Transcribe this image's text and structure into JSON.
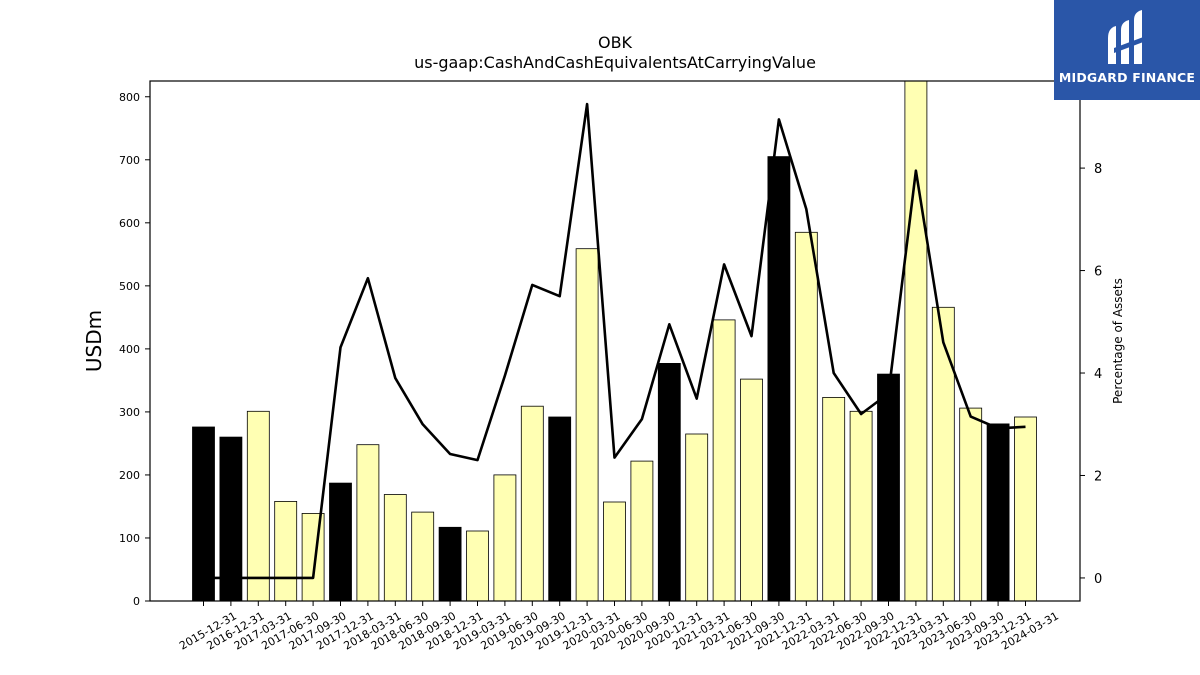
{
  "chart_data": {
    "type": "bar",
    "title": "OBK",
    "subtitle": "us-gaap:CashAndCashEquivalentsAtCarryingValue",
    "ylabel": "USDm",
    "y2label": "Percentage of Assets",
    "ylim": [
      0,
      825
    ],
    "y2lim": [
      -0.45,
      9.7
    ],
    "yticks": [
      0,
      100,
      200,
      300,
      400,
      500,
      600,
      700,
      800
    ],
    "y2ticks": [
      0,
      2,
      4,
      6,
      8
    ],
    "grid": false,
    "categories": [
      "2015-12-31",
      "2016-12-31",
      "2017-03-31",
      "2017-06-30",
      "2017-09-30",
      "2017-12-31",
      "2018-03-31",
      "2018-06-30",
      "2018-09-30",
      "2018-12-31",
      "2019-03-31",
      "2019-06-30",
      "2019-09-30",
      "2019-12-31",
      "2020-03-31",
      "2020-06-30",
      "2020-09-30",
      "2020-12-31",
      "2021-03-31",
      "2021-06-30",
      "2021-09-30",
      "2021-12-31",
      "2022-03-31",
      "2022-06-30",
      "2022-09-30",
      "2022-12-31",
      "2023-03-31",
      "2023-06-30",
      "2023-09-30",
      "2023-12-31",
      "2024-03-31"
    ],
    "series": [
      {
        "type": "bar",
        "values": [
          276,
          260,
          301,
          158,
          139,
          187,
          248,
          169,
          141,
          117,
          111,
          200,
          309,
          292,
          559,
          157,
          222,
          377,
          265,
          446,
          352,
          705,
          585,
          323,
          301,
          360,
          830,
          466,
          306,
          281,
          292
        ],
        "colors": [
          "#000000",
          "#000000",
          "#ffffb3",
          "#ffffb3",
          "#ffffb3",
          "#000000",
          "#ffffb3",
          "#ffffb3",
          "#ffffb3",
          "#000000",
          "#ffffb3",
          "#ffffb3",
          "#ffffb3",
          "#000000",
          "#ffffb3",
          "#ffffb3",
          "#ffffb3",
          "#000000",
          "#ffffb3",
          "#ffffb3",
          "#ffffb3",
          "#000000",
          "#ffffb3",
          "#ffffb3",
          "#ffffb3",
          "#000000",
          "#ffffb3",
          "#ffffb3",
          "#ffffb3",
          "#000000",
          "#ffffb3"
        ]
      },
      {
        "type": "line",
        "axis": "right",
        "color": "#000000",
        "values": [
          0.0,
          0.0,
          0.0,
          0.0,
          0.0,
          4.5,
          5.85,
          3.9,
          3.0,
          2.42,
          2.3,
          3.95,
          5.72,
          5.5,
          9.25,
          2.35,
          3.1,
          4.95,
          3.5,
          6.12,
          4.72,
          8.95,
          7.2,
          4.0,
          3.2,
          3.6,
          7.95,
          4.6,
          3.15,
          2.92,
          2.95
        ]
      }
    ]
  },
  "logo": {
    "text": "MIDGARD FINANCE",
    "background": "#2a56a8"
  }
}
